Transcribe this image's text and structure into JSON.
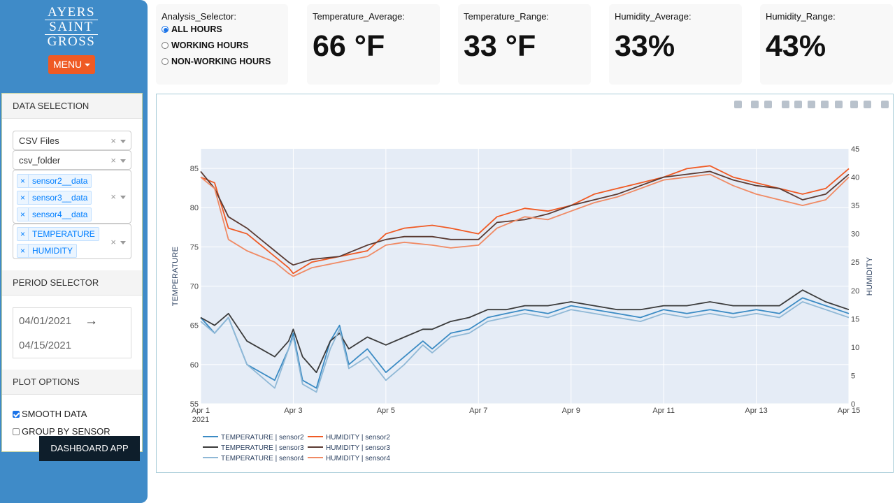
{
  "sidebar": {
    "logo_lines": [
      "AYERS",
      "SAINT",
      "GROSS"
    ],
    "menu_label": "MENU",
    "data_selection": {
      "heading": "DATA SELECTION",
      "source_type": "CSV Files",
      "folder": "csv_folder",
      "sensors": [
        "sensor2__data",
        "sensor3__data",
        "sensor4__data"
      ],
      "variables": [
        "TEMPERATURE",
        "HUMIDITY"
      ],
      "chip_remove": "×",
      "clear": "×"
    },
    "period_selector": {
      "heading": "PERIOD SELECTOR",
      "start_date": "04/01/2021",
      "end_date": "04/15/2021",
      "arrow": "→"
    },
    "plot_options": {
      "heading": "PLOT OPTIONS",
      "smooth_label": "SMOOTH DATA",
      "smooth_checked": true,
      "group_label": "GROUP BY SENSOR",
      "group_checked": false
    },
    "badge": "DASHBOARD APP"
  },
  "analysis_selector": {
    "label": "Analysis_Selector:",
    "options": [
      "ALL HOURS",
      "WORKING HOURS",
      "NON-WORKING HOURS"
    ],
    "selected": "ALL HOURS"
  },
  "kpis": [
    {
      "label": "Temperature_Average:",
      "value": "66 °F"
    },
    {
      "label": "Temperature_Range:",
      "value": "33 °F"
    },
    {
      "label": "Humidity_Average:",
      "value": "33%"
    },
    {
      "label": "Humidity_Range:",
      "value": "43%"
    }
  ],
  "modebar_icons": [
    "camera-icon",
    "zoom-icon",
    "pan-icon",
    "zoom-in-icon",
    "zoom-out-icon",
    "autoscale-icon",
    "reset-axes-icon",
    "spike-lines-icon",
    "hover-closest-icon",
    "hover-compare-icon",
    "plotly-logo-icon"
  ],
  "colors": {
    "sidebar": "#3f8bc8",
    "menu_button": "#ef5a24",
    "plot_bg": "#e5ecf6",
    "temp_sensor2": "#3b8bc4",
    "temp_sensor3": "#3b3b3b",
    "temp_sensor4": "#8fb8d6",
    "hum_sensor2": "#f05a24",
    "hum_sensor3": "#5a3a32",
    "hum_sensor4": "#f08a64"
  },
  "chart_data": {
    "type": "line",
    "xlabel": "",
    "ylabel": "TEMPERATURE",
    "y2label": "HUMIDITY",
    "x_ticks": [
      "Apr 1",
      "Apr 3",
      "Apr 5",
      "Apr 7",
      "Apr 9",
      "Apr 11",
      "Apr 13",
      "Apr 15"
    ],
    "x_tick_days": [
      1,
      3,
      5,
      7,
      9,
      11,
      13,
      15
    ],
    "x_year_label": "2021",
    "xlim": [
      1,
      15
    ],
    "ylim": [
      55,
      87.5
    ],
    "y_ticks": [
      55,
      60,
      65,
      70,
      75,
      80,
      85
    ],
    "y2lim": [
      0,
      45
    ],
    "y2_ticks": [
      0,
      5,
      10,
      15,
      20,
      25,
      30,
      35,
      40,
      45
    ],
    "grid": true,
    "legend_position": "bottom-left",
    "series": [
      {
        "name": "TEMPERATURE | sensor2",
        "axis": "y",
        "color": "#3b8bc4",
        "x": [
          1,
          1.3,
          1.6,
          2.0,
          2.6,
          2.9,
          3.0,
          3.2,
          3.5,
          3.8,
          4.0,
          4.2,
          4.6,
          5.0,
          5.4,
          5.8,
          6.0,
          6.4,
          6.8,
          7.2,
          7.6,
          8.0,
          8.5,
          9.0,
          9.5,
          10.0,
          10.5,
          11.0,
          11.5,
          12.0,
          12.5,
          13.0,
          13.5,
          14.0,
          14.5,
          15
        ],
        "y": [
          66,
          64,
          66,
          60,
          58,
          62,
          64,
          58,
          57,
          63,
          65,
          60,
          62,
          59,
          61,
          63,
          62,
          64,
          64.5,
          66,
          66.5,
          67,
          66.5,
          67.5,
          67,
          66.5,
          66,
          67,
          66.5,
          67,
          66.5,
          67,
          66.5,
          68.5,
          67.5,
          66.5
        ]
      },
      {
        "name": "TEMPERATURE | sensor3",
        "axis": "y",
        "color": "#3b3b3b",
        "x": [
          1,
          1.3,
          1.6,
          2.0,
          2.6,
          2.9,
          3.0,
          3.2,
          3.5,
          3.8,
          4.0,
          4.2,
          4.6,
          5.0,
          5.4,
          5.8,
          6.0,
          6.4,
          6.8,
          7.2,
          7.6,
          8.0,
          8.5,
          9.0,
          9.5,
          10.0,
          10.5,
          11.0,
          11.5,
          12.0,
          12.5,
          13.0,
          13.5,
          14.0,
          14.5,
          15
        ],
        "y": [
          66,
          65,
          66.5,
          63,
          61,
          63,
          64.5,
          61,
          59,
          63,
          64,
          62,
          63.5,
          62.5,
          63.5,
          64.5,
          64.5,
          65.5,
          66,
          67,
          67,
          67.5,
          67.5,
          68,
          67.5,
          67,
          67,
          67.5,
          67.5,
          68,
          67.5,
          67.5,
          67.5,
          69.5,
          68,
          67
        ]
      },
      {
        "name": "TEMPERATURE | sensor4",
        "axis": "y",
        "color": "#8fb8d6",
        "x": [
          1,
          1.3,
          1.6,
          2.0,
          2.6,
          2.9,
          3.0,
          3.2,
          3.5,
          3.8,
          4.0,
          4.2,
          4.6,
          5.0,
          5.4,
          5.8,
          6.0,
          6.4,
          6.8,
          7.2,
          7.6,
          8.0,
          8.5,
          9.0,
          9.5,
          10.0,
          10.5,
          11.0,
          11.5,
          12.0,
          12.5,
          13.0,
          13.5,
          14.0,
          14.5,
          15
        ],
        "y": [
          65.5,
          64,
          66,
          60,
          57,
          62,
          63.5,
          57.5,
          56.5,
          62,
          64.5,
          59.5,
          61,
          58,
          60,
          62.5,
          61.5,
          63.5,
          64,
          65.5,
          66,
          66.5,
          66,
          67,
          66.5,
          66,
          65.5,
          66.5,
          66,
          66.5,
          66,
          66.5,
          66,
          68,
          67,
          66
        ]
      },
      {
        "name": "HUMIDITY | sensor2",
        "axis": "y2",
        "color": "#f05a24",
        "x": [
          1,
          1.3,
          1.6,
          2.0,
          2.6,
          2.9,
          3.0,
          3.4,
          4.0,
          4.6,
          5.0,
          5.4,
          6.0,
          6.4,
          7.0,
          7.4,
          8.0,
          8.5,
          9.0,
          9.5,
          10.0,
          10.5,
          11.0,
          11.5,
          12.0,
          12.5,
          13.0,
          13.5,
          14.0,
          14.5,
          15
        ],
        "y": [
          40,
          39,
          31,
          30,
          26,
          24,
          23,
          25,
          26,
          27,
          30,
          31,
          31.5,
          31,
          30,
          33,
          34.5,
          34,
          35,
          37,
          38,
          39,
          40,
          41.5,
          42,
          40,
          39,
          38,
          37,
          38,
          41.5
        ]
      },
      {
        "name": "HUMIDITY | sensor3",
        "axis": "y2",
        "color": "#5a3a32",
        "x": [
          1,
          1.3,
          1.6,
          2.0,
          2.6,
          2.9,
          3.0,
          3.4,
          4.0,
          4.6,
          5.0,
          5.4,
          6.0,
          6.4,
          7.0,
          7.4,
          8.0,
          8.5,
          9.0,
          9.5,
          10.0,
          10.5,
          11.0,
          11.5,
          12.0,
          12.5,
          13.0,
          13.5,
          14.0,
          14.5,
          15
        ],
        "y": [
          41,
          38,
          33,
          31,
          27,
          25,
          24.5,
          25.5,
          26,
          28,
          29,
          29.5,
          29.5,
          29,
          29,
          32,
          32.5,
          33.5,
          35,
          36,
          37,
          38.5,
          40,
          40.5,
          41,
          39.5,
          38.5,
          38,
          36,
          37,
          40.5
        ]
      },
      {
        "name": "HUMIDITY | sensor4",
        "axis": "y2",
        "color": "#f08a64",
        "x": [
          1,
          1.3,
          1.6,
          2.0,
          2.6,
          2.9,
          3.0,
          3.4,
          4.0,
          4.6,
          5.0,
          5.4,
          6.0,
          6.4,
          7.0,
          7.4,
          8.0,
          8.5,
          9.0,
          9.5,
          10.0,
          10.5,
          11.0,
          11.5,
          12.0,
          12.5,
          13.0,
          13.5,
          14.0,
          14.5,
          15
        ],
        "y": [
          40,
          38,
          29,
          27,
          25,
          23,
          22.5,
          24,
          25,
          26,
          28,
          28.5,
          28,
          27.5,
          28,
          31,
          33,
          32.5,
          34,
          35.5,
          36.5,
          38,
          39.5,
          40,
          40.5,
          38.5,
          37,
          36,
          35,
          36,
          40
        ]
      }
    ]
  }
}
